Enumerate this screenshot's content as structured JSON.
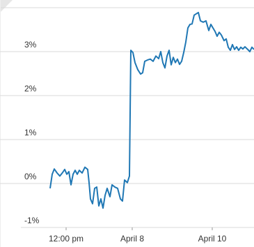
{
  "chart_data": {
    "type": "line",
    "x": [
      7,
      10,
      13,
      17,
      21,
      25,
      28,
      31,
      34,
      37,
      40,
      43,
      46,
      49,
      53,
      57,
      61,
      63,
      65,
      68,
      71,
      74,
      77,
      80,
      83,
      86,
      89,
      93,
      96,
      100,
      104,
      108,
      111,
      114,
      118,
      121,
      123,
      126,
      129,
      133,
      137,
      140,
      143,
      147,
      151,
      155,
      159,
      163,
      166,
      169,
      172,
      175,
      178,
      181,
      184,
      187,
      190,
      193,
      196,
      199,
      202,
      205,
      208,
      211,
      214,
      217,
      220,
      223,
      227,
      231,
      235,
      238,
      241,
      244,
      247,
      250,
      253,
      257,
      260,
      263,
      266,
      269,
      272,
      275,
      278,
      281,
      284,
      287,
      291,
      294,
      297,
      300
    ],
    "series": [
      {
        "color": "#1f77b4",
        "values": [
          -0.11,
          0.21,
          0.33,
          0.24,
          0.17,
          0.25,
          0.32,
          0.21,
          0.27,
          -0.03,
          0.21,
          0.3,
          0.21,
          0.3,
          0.24,
          0.37,
          0.32,
          0.02,
          -0.35,
          -0.46,
          -0.11,
          -0.08,
          -0.51,
          -0.35,
          -0.56,
          -0.27,
          -0.11,
          -0.3,
          -0.03,
          -0.08,
          -0.11,
          -0.35,
          -0.4,
          0.08,
          0.02,
          0.17,
          3.03,
          2.98,
          2.75,
          2.59,
          2.49,
          2.52,
          2.78,
          2.81,
          2.83,
          2.78,
          2.9,
          2.84,
          3.0,
          2.75,
          2.63,
          2.9,
          3.03,
          2.7,
          2.87,
          2.75,
          2.83,
          2.71,
          2.78,
          2.98,
          3.22,
          3.54,
          3.62,
          3.63,
          3.83,
          3.86,
          3.89,
          3.7,
          3.67,
          3.7,
          3.48,
          3.62,
          3.54,
          3.46,
          3.35,
          3.44,
          3.38,
          3.25,
          3.29,
          3.1,
          3.03,
          3.16,
          3.05,
          3.11,
          3.03,
          3.1,
          3.06,
          3.11,
          3.05,
          3.0,
          3.1,
          3.05
        ]
      }
    ],
    "xlim": [
      0,
      300
    ],
    "xticks": [
      {
        "value": 30,
        "label": "12:00 pm"
      },
      {
        "value": 125,
        "label": "April 8"
      },
      {
        "value": 240,
        "label": "April 10"
      }
    ],
    "ylim": [
      -1,
      4
    ],
    "yticks": [
      {
        "value": -1,
        "label": "-1%"
      },
      {
        "value": 0,
        "label": "0%"
      },
      {
        "value": 1,
        "label": "1%"
      },
      {
        "value": 2,
        "label": "2%"
      },
      {
        "value": 3,
        "label": "3%"
      }
    ],
    "grid": true
  }
}
